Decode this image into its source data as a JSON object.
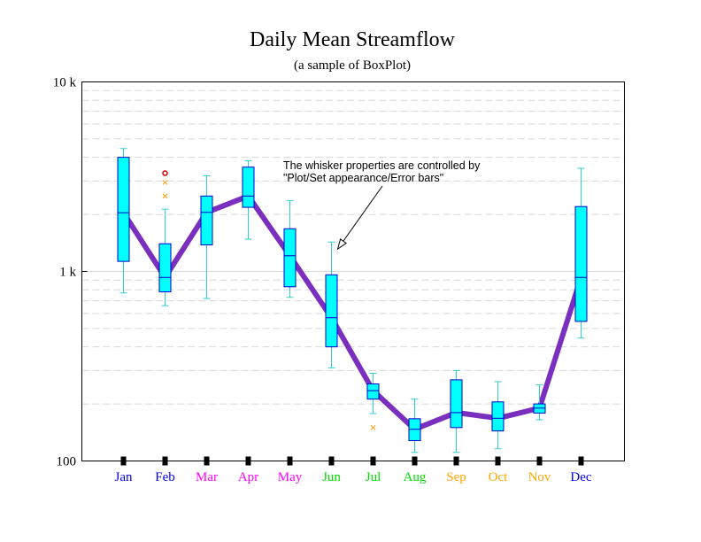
{
  "chart_data": {
    "type": "box",
    "title": "Daily Mean Streamflow",
    "subtitle": "(a sample of BoxPlot)",
    "xlabel": "",
    "ylabel": "",
    "yscale": "log",
    "ylim": [
      100,
      10000
    ],
    "yticks": [
      {
        "value": 100,
        "label": "100"
      },
      {
        "value": 1000,
        "label": "1 k"
      },
      {
        "value": 10000,
        "label": "10 k"
      }
    ],
    "grid": "horizontal dashed",
    "categories": [
      "Jan",
      "Feb",
      "Mar",
      "Apr",
      "May",
      "Jun",
      "Jul",
      "Aug",
      "Sep",
      "Oct",
      "Nov",
      "Dec"
    ],
    "category_colors": [
      "#0000ee",
      "#0000ee",
      "#ff00ff",
      "#ff00ff",
      "#ff00ff",
      "#00dd00",
      "#00dd00",
      "#00dd00",
      "#ffa500",
      "#ffa500",
      "#ffa500",
      "#0000ee"
    ],
    "boxes": [
      {
        "low": 770,
        "q1": 1130,
        "median": 2040,
        "q3": 4000,
        "high": 4450,
        "outliers": []
      },
      {
        "low": 660,
        "q1": 780,
        "median": 930,
        "q3": 1400,
        "high": 2130,
        "outliers": [
          2500,
          2950,
          3300
        ]
      },
      {
        "low": 720,
        "q1": 1380,
        "median": 2050,
        "q3": 2500,
        "high": 3200,
        "outliers": []
      },
      {
        "low": 1480,
        "q1": 2180,
        "median": 2500,
        "q3": 3550,
        "high": 3830,
        "outliers": []
      },
      {
        "low": 730,
        "q1": 830,
        "median": 1210,
        "q3": 1680,
        "high": 2360,
        "outliers": []
      },
      {
        "low": 310,
        "q1": 400,
        "median": 570,
        "q3": 960,
        "high": 1430,
        "outliers": []
      },
      {
        "low": 178,
        "q1": 212,
        "median": 235,
        "q3": 255,
        "high": 290,
        "outliers": [
          150
        ]
      },
      {
        "low": 111,
        "q1": 128,
        "median": 147,
        "q3": 167,
        "high": 212,
        "outliers": []
      },
      {
        "low": 111,
        "q1": 150,
        "median": 180,
        "q3": 268,
        "high": 300,
        "outliers": []
      },
      {
        "low": 116,
        "q1": 144,
        "median": 168,
        "q3": 205,
        "high": 262,
        "outliers": []
      },
      {
        "low": 165,
        "q1": 179,
        "median": 190,
        "q3": 200,
        "high": 252,
        "outliers": []
      },
      {
        "low": 445,
        "q1": 545,
        "median": 930,
        "q3": 2200,
        "high": 3500,
        "outliers": []
      }
    ],
    "median_line": {
      "values": [
        2040,
        930,
        2050,
        2500,
        1210,
        570,
        235,
        147,
        180,
        168,
        190,
        930
      ],
      "color": "#7b2fbe"
    },
    "box_fill": "#00ffff",
    "box_edge": "#0000cc",
    "whisker_color": "#33cccc",
    "annotation": {
      "lines": [
        "The whisker properties are controlled by",
        "\"Plot/Set appearance/Error bars\""
      ],
      "points_to": {
        "category": "Jun",
        "value": 1430
      }
    }
  }
}
